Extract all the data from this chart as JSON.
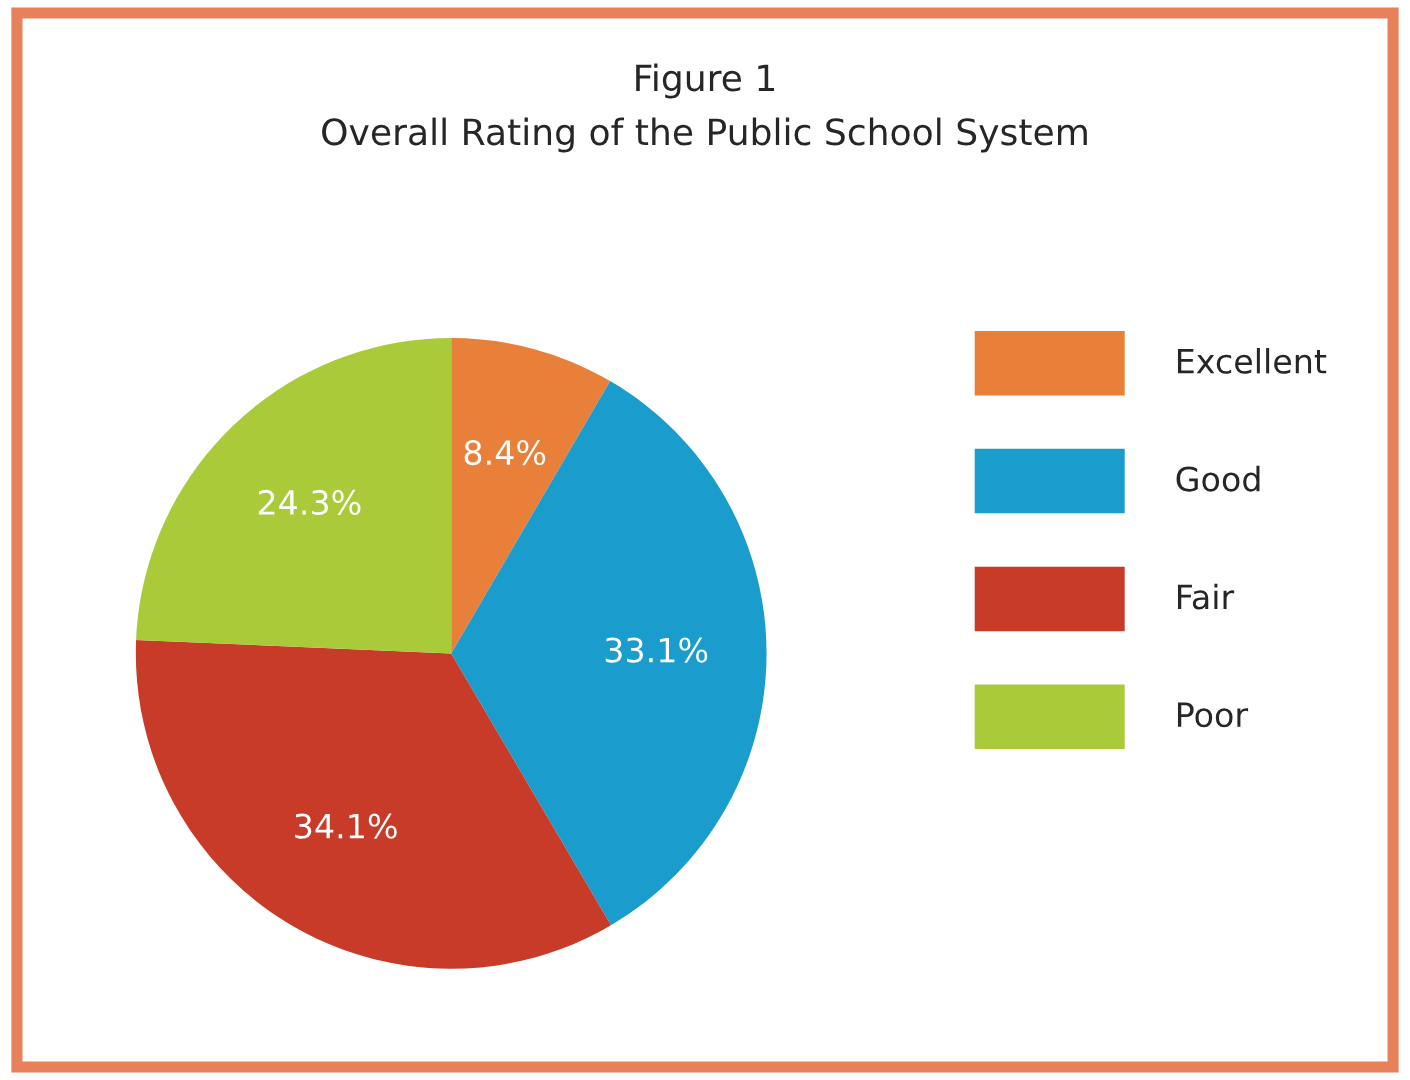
{
  "chart_data": {
    "type": "pie",
    "title": "Figure 1",
    "subtitle": "Overall Rating of the Public School System",
    "categories": [
      "Excellent",
      "Good",
      "Fair",
      "Poor"
    ],
    "values": [
      8.4,
      33.1,
      34.1,
      24.3
    ],
    "value_labels": [
      "8.4%",
      "33.1%",
      "34.1%",
      "24.3%"
    ],
    "colors": [
      "#e8803a",
      "#1a9dcc",
      "#c83b28",
      "#a9cb3a"
    ],
    "legend": "right"
  }
}
